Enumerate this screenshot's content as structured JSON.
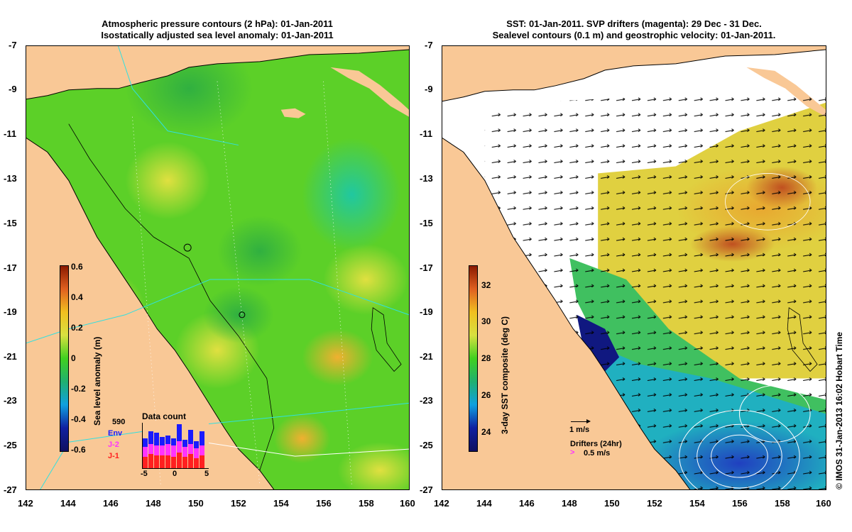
{
  "left_panel": {
    "title_line1": "Atmospheric pressure contours (2 hPa): 01-Jan-2011",
    "title_line2": "Isostatically adjusted sea level anomaly: 01-Jan-2011",
    "colorbar": {
      "label": "Sea level anomaly (m)",
      "ticks": [
        "0.6",
        "0.4",
        "0.2",
        "0",
        "-0.2",
        "-0.4",
        "-0.6"
      ]
    },
    "data_count": {
      "title": "Data count",
      "total": "590",
      "legend": [
        {
          "label": "Env",
          "color": "#1a1aff"
        },
        {
          "label": "J-2",
          "color": "#ff33ff"
        },
        {
          "label": "J-1",
          "color": "#ff2020"
        }
      ],
      "x_ticks": [
        "-5",
        "0",
        "5"
      ]
    }
  },
  "right_panel": {
    "title_line1": "SST: 01-Jan-2011. SVP drifters (magenta): 29 Dec - 31 Dec.",
    "title_line2": "Sealevel contours (0.1 m) and geostrophic velocity: 01-Jan-2011.",
    "colorbar": {
      "label": "3-day SST composite (deg C)",
      "ticks": [
        "32",
        "30",
        "28",
        "26",
        "24"
      ]
    },
    "scale_arrow_label": "1 m/s",
    "drifters_label": "Drifters (24hr)",
    "drifters_speed": "0.5 m/s"
  },
  "axes": {
    "x_ticks": [
      "142",
      "144",
      "146",
      "148",
      "150",
      "152",
      "154",
      "156",
      "158",
      "160"
    ],
    "y_ticks": [
      "-7",
      "-9",
      "-11",
      "-13",
      "-15",
      "-17",
      "-19",
      "-21",
      "-23",
      "-25",
      "-27"
    ]
  },
  "copyright": "© IMOS 31-Jan-2013 16:02 Hobart Time",
  "colors": {
    "land": "#f9c896",
    "ocean_green": "#55d020",
    "ocean_yellow": "#d8e040",
    "cloud_white": "#ffffff"
  }
}
